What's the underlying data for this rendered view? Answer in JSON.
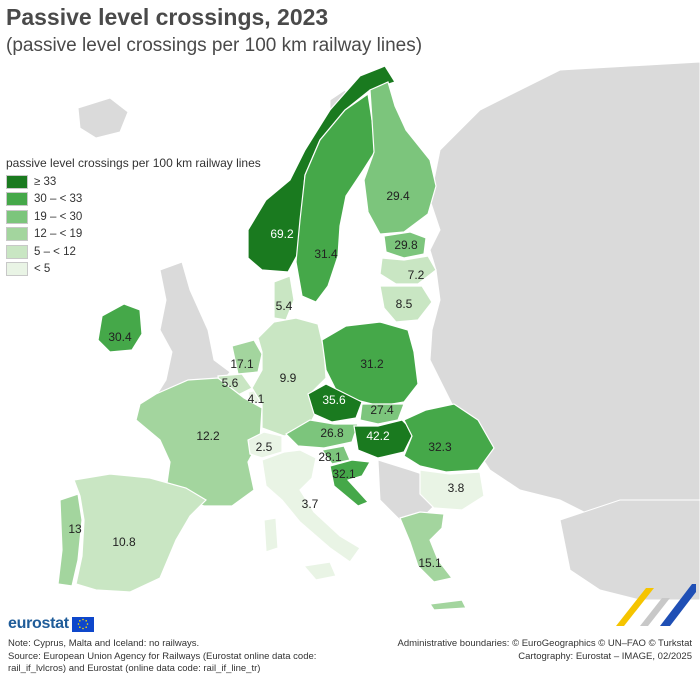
{
  "header": {
    "title": "Passive level crossings, 2023",
    "subtitle": "(passive level crossings per 100 km railway lines)"
  },
  "legend": {
    "title": "passive level crossings per 100 km railway lines",
    "classes": [
      {
        "label": "≥ 33",
        "color": "#1a7a1f"
      },
      {
        "label": "30 – < 33",
        "color": "#45a849"
      },
      {
        "label": "19 – < 30",
        "color": "#7cc57c"
      },
      {
        "label": "12 – < 19",
        "color": "#a3d59e"
      },
      {
        "label": "5 – < 12",
        "color": "#c9e6c3"
      },
      {
        "label": "< 5",
        "color": "#e9f4e5"
      }
    ]
  },
  "map_values": [
    {
      "country": "Norway",
      "value": "69.2"
    },
    {
      "country": "Sweden",
      "value": "31.4"
    },
    {
      "country": "Finland",
      "value": "29.4"
    },
    {
      "country": "Estonia",
      "value": "29.8"
    },
    {
      "country": "Latvia",
      "value": "7.2"
    },
    {
      "country": "Lithuania",
      "value": "8.5"
    },
    {
      "country": "Denmark",
      "value": "5.4"
    },
    {
      "country": "Ireland",
      "value": "30.4"
    },
    {
      "country": "Netherlands",
      "value": "17.1"
    },
    {
      "country": "Belgium",
      "value": "5.6"
    },
    {
      "country": "Luxembourg",
      "value": "4.1"
    },
    {
      "country": "Germany",
      "value": "9.9"
    },
    {
      "country": "Poland",
      "value": "31.2"
    },
    {
      "country": "Czechia",
      "value": "35.6"
    },
    {
      "country": "Slovakia",
      "value": "27.4"
    },
    {
      "country": "Austria",
      "value": "26.8"
    },
    {
      "country": "Hungary",
      "value": "42.2"
    },
    {
      "country": "Romania",
      "value": "32.3"
    },
    {
      "country": "Slovenia",
      "value": "28.1"
    },
    {
      "country": "Croatia",
      "value": "32.1"
    },
    {
      "country": "France",
      "value": "12.2"
    },
    {
      "country": "Switzerland",
      "value": "2.5"
    },
    {
      "country": "Italy",
      "value": "3.7"
    },
    {
      "country": "Bulgaria",
      "value": "3.8"
    },
    {
      "country": "Portugal",
      "value": "13"
    },
    {
      "country": "Spain",
      "value": "10.8"
    },
    {
      "country": "Greece",
      "value": "15.1"
    }
  ],
  "branding": {
    "logo": "eurostat"
  },
  "footer": {
    "note": "Note: Cyprus, Malta and Iceland: no railways.",
    "source": "Source: European Union Agency for Railways (Eurostat online data code: rail_if_lvlcros) and Eurostat (online data code: rail_if_line_tr)",
    "boundaries": "Administrative boundaries: © EuroGeographics © UN–FAO © Turkstat",
    "cartography": "Cartography: Eurostat – IMAGE, 02/2025"
  }
}
